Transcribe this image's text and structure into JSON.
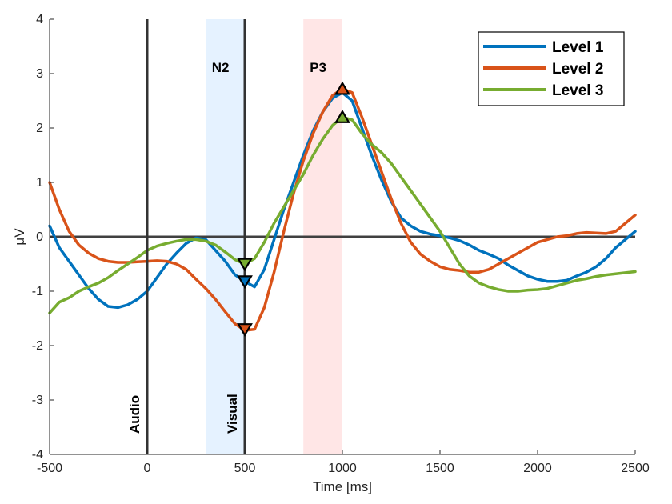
{
  "chart_data": {
    "type": "line",
    "title": "",
    "xlabel": "Time [ms]",
    "ylabel": "μV",
    "xlim": [
      -500,
      2500
    ],
    "ylim": [
      -4,
      4
    ],
    "xticks": [
      -500,
      0,
      500,
      1000,
      1500,
      2000,
      2500
    ],
    "yticks": [
      -4,
      -3,
      -2,
      -1,
      0,
      1,
      2,
      3,
      4
    ],
    "grid": false,
    "legend_position": "top-right",
    "bands": [
      {
        "label": "N2",
        "x": [
          300,
          500
        ],
        "color": "#dceeff"
      },
      {
        "label": "P3",
        "x": [
          800,
          1000
        ],
        "color": "#ffdede"
      }
    ],
    "event_lines": [
      {
        "label": "Audio",
        "x": 0
      },
      {
        "label": "Visual",
        "x": 500
      }
    ],
    "series": [
      {
        "name": "Level 1",
        "color": "#0072bd",
        "x": [
          -500,
          -450,
          -400,
          -350,
          -300,
          -250,
          -200,
          -150,
          -100,
          -50,
          0,
          50,
          100,
          150,
          200,
          250,
          300,
          350,
          400,
          450,
          500,
          550,
          600,
          650,
          700,
          750,
          800,
          850,
          900,
          950,
          1000,
          1050,
          1100,
          1150,
          1200,
          1250,
          1300,
          1350,
          1400,
          1450,
          1500,
          1550,
          1600,
          1650,
          1700,
          1750,
          1800,
          1850,
          1900,
          1950,
          2000,
          2050,
          2100,
          2150,
          2200,
          2250,
          2300,
          2350,
          2400,
          2450,
          2500
        ],
        "y": [
          0.2,
          -0.2,
          -0.45,
          -0.7,
          -0.95,
          -1.15,
          -1.28,
          -1.3,
          -1.25,
          -1.15,
          -1.0,
          -0.75,
          -0.5,
          -0.3,
          -0.12,
          -0.02,
          -0.05,
          -0.25,
          -0.45,
          -0.7,
          -0.82,
          -0.92,
          -0.6,
          -0.05,
          0.5,
          1.0,
          1.5,
          1.95,
          2.3,
          2.55,
          2.65,
          2.5,
          2.0,
          1.5,
          1.05,
          0.65,
          0.35,
          0.2,
          0.1,
          0.05,
          0.02,
          -0.02,
          -0.07,
          -0.15,
          -0.25,
          -0.32,
          -0.4,
          -0.52,
          -0.62,
          -0.72,
          -0.78,
          -0.82,
          -0.82,
          -0.8,
          -0.72,
          -0.65,
          -0.55,
          -0.4,
          -0.2,
          -0.05,
          0.1
        ]
      },
      {
        "name": "Level 2",
        "color": "#d95319",
        "x": [
          -500,
          -450,
          -400,
          -350,
          -300,
          -250,
          -200,
          -150,
          -100,
          -50,
          0,
          50,
          100,
          150,
          200,
          250,
          300,
          350,
          400,
          450,
          500,
          550,
          600,
          650,
          700,
          750,
          800,
          850,
          900,
          950,
          1000,
          1050,
          1100,
          1150,
          1200,
          1250,
          1300,
          1350,
          1400,
          1450,
          1500,
          1550,
          1600,
          1650,
          1700,
          1750,
          1800,
          1850,
          1900,
          1950,
          2000,
          2050,
          2100,
          2150,
          2200,
          2250,
          2300,
          2350,
          2400,
          2450,
          2500
        ],
        "y": [
          1.0,
          0.5,
          0.1,
          -0.15,
          -0.3,
          -0.4,
          -0.45,
          -0.47,
          -0.47,
          -0.46,
          -0.45,
          -0.44,
          -0.45,
          -0.5,
          -0.6,
          -0.78,
          -0.95,
          -1.15,
          -1.38,
          -1.6,
          -1.72,
          -1.7,
          -1.3,
          -0.65,
          0.1,
          0.8,
          1.4,
          1.9,
          2.3,
          2.6,
          2.72,
          2.65,
          2.2,
          1.7,
          1.2,
          0.7,
          0.25,
          -0.1,
          -0.32,
          -0.45,
          -0.55,
          -0.6,
          -0.62,
          -0.65,
          -0.65,
          -0.6,
          -0.5,
          -0.4,
          -0.3,
          -0.2,
          -0.1,
          -0.05,
          0.0,
          0.02,
          0.06,
          0.08,
          0.07,
          0.06,
          0.1,
          0.25,
          0.4
        ]
      },
      {
        "name": "Level 3",
        "color": "#77ac30",
        "x": [
          -500,
          -450,
          -400,
          -350,
          -300,
          -250,
          -200,
          -150,
          -100,
          -50,
          0,
          50,
          100,
          150,
          200,
          250,
          300,
          350,
          400,
          450,
          500,
          550,
          600,
          650,
          700,
          750,
          800,
          850,
          900,
          950,
          1000,
          1050,
          1100,
          1150,
          1200,
          1250,
          1300,
          1350,
          1400,
          1450,
          1500,
          1550,
          1600,
          1650,
          1700,
          1750,
          1800,
          1850,
          1900,
          1950,
          2000,
          2050,
          2100,
          2150,
          2200,
          2250,
          2300,
          2350,
          2400,
          2450,
          2500
        ],
        "y": [
          -1.4,
          -1.2,
          -1.12,
          -1.0,
          -0.92,
          -0.85,
          -0.75,
          -0.62,
          -0.5,
          -0.38,
          -0.25,
          -0.17,
          -0.12,
          -0.08,
          -0.05,
          -0.05,
          -0.08,
          -0.15,
          -0.28,
          -0.42,
          -0.5,
          -0.4,
          -0.1,
          0.25,
          0.55,
          0.85,
          1.15,
          1.5,
          1.8,
          2.05,
          2.2,
          2.15,
          1.9,
          1.7,
          1.55,
          1.35,
          1.1,
          0.85,
          0.6,
          0.35,
          0.1,
          -0.2,
          -0.5,
          -0.72,
          -0.85,
          -0.92,
          -0.97,
          -1.0,
          -1.0,
          -0.98,
          -0.97,
          -0.95,
          -0.9,
          -0.85,
          -0.8,
          -0.77,
          -0.73,
          -0.7,
          -0.68,
          -0.66,
          -0.64
        ]
      }
    ],
    "markers": [
      {
        "series": "Level 3",
        "shape": "down-triangle",
        "x": 500,
        "y": -0.5
      },
      {
        "series": "Level 1",
        "shape": "down-triangle",
        "x": 500,
        "y": -0.82
      },
      {
        "series": "Level 2",
        "shape": "down-triangle",
        "x": 500,
        "y": -1.7
      },
      {
        "series": "Level 2",
        "shape": "up-triangle",
        "x": 1000,
        "y": 2.72
      },
      {
        "series": "Level 3",
        "shape": "up-triangle",
        "x": 1000,
        "y": 2.2
      }
    ]
  }
}
